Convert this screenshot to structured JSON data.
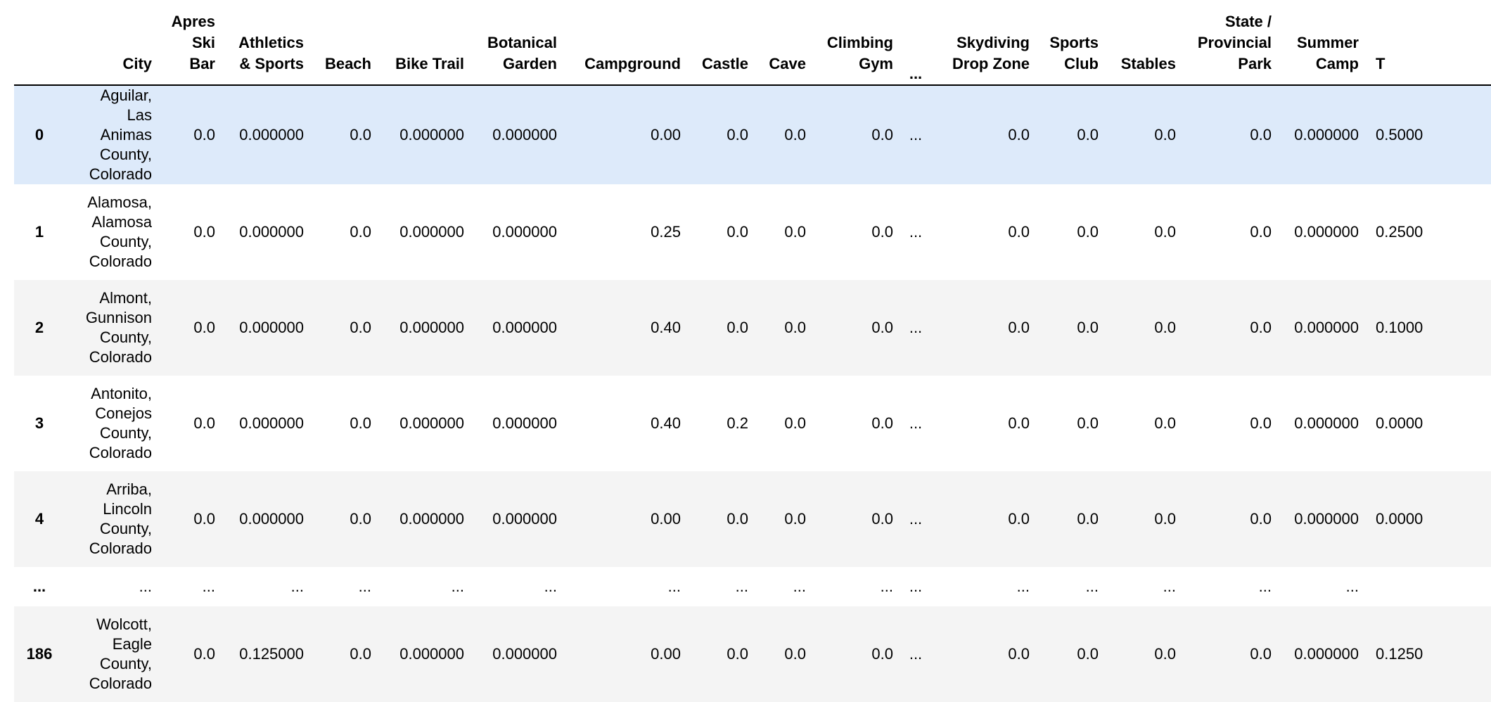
{
  "table": {
    "index_header": "",
    "columns": [
      "City",
      "Apres Ski Bar",
      "Athletics & Sports",
      "Beach",
      "Bike Trail",
      "Botanical Garden",
      "Campground",
      "Castle",
      "Cave",
      "Climbing Gym",
      "...",
      "Skydiving Drop Zone",
      "Sports Club",
      "Stables",
      "State / Provincial Park",
      "Summer Camp",
      "T"
    ],
    "rows": [
      {
        "index": "0",
        "cells": [
          "Aguilar, Las Animas County, Colorado",
          "0.0",
          "0.000000",
          "0.0",
          "0.000000",
          "0.000000",
          "0.00",
          "0.0",
          "0.0",
          "0.0",
          "...",
          "0.0",
          "0.0",
          "0.0",
          "0.0",
          "0.000000",
          "0.5000"
        ]
      },
      {
        "index": "1",
        "cells": [
          "Alamosa, Alamosa County, Colorado",
          "0.0",
          "0.000000",
          "0.0",
          "0.000000",
          "0.000000",
          "0.25",
          "0.0",
          "0.0",
          "0.0",
          "...",
          "0.0",
          "0.0",
          "0.0",
          "0.0",
          "0.000000",
          "0.2500"
        ]
      },
      {
        "index": "2",
        "cells": [
          "Almont, Gunnison County, Colorado",
          "0.0",
          "0.000000",
          "0.0",
          "0.000000",
          "0.000000",
          "0.40",
          "0.0",
          "0.0",
          "0.0",
          "...",
          "0.0",
          "0.0",
          "0.0",
          "0.0",
          "0.000000",
          "0.1000"
        ]
      },
      {
        "index": "3",
        "cells": [
          "Antonito, Conejos County, Colorado",
          "0.0",
          "0.000000",
          "0.0",
          "0.000000",
          "0.000000",
          "0.40",
          "0.2",
          "0.0",
          "0.0",
          "...",
          "0.0",
          "0.0",
          "0.0",
          "0.0",
          "0.000000",
          "0.0000"
        ]
      },
      {
        "index": "4",
        "cells": [
          "Arriba, Lincoln County, Colorado",
          "0.0",
          "0.000000",
          "0.0",
          "0.000000",
          "0.000000",
          "0.00",
          "0.0",
          "0.0",
          "0.0",
          "...",
          "0.0",
          "0.0",
          "0.0",
          "0.0",
          "0.000000",
          "0.0000"
        ]
      },
      {
        "index": "...",
        "cells": [
          "...",
          "...",
          "...",
          "...",
          "...",
          "...",
          "...",
          "...",
          "...",
          "...",
          "...",
          "...",
          "...",
          "...",
          "...",
          "...",
          ""
        ]
      },
      {
        "index": "186",
        "cells": [
          "Wolcott, Eagle County, Colorado",
          "0.0",
          "0.125000",
          "0.0",
          "0.000000",
          "0.000000",
          "0.00",
          "0.0",
          "0.0",
          "0.0",
          "...",
          "0.0",
          "0.0",
          "0.0",
          "0.0",
          "0.000000",
          "0.1250"
        ]
      }
    ]
  }
}
